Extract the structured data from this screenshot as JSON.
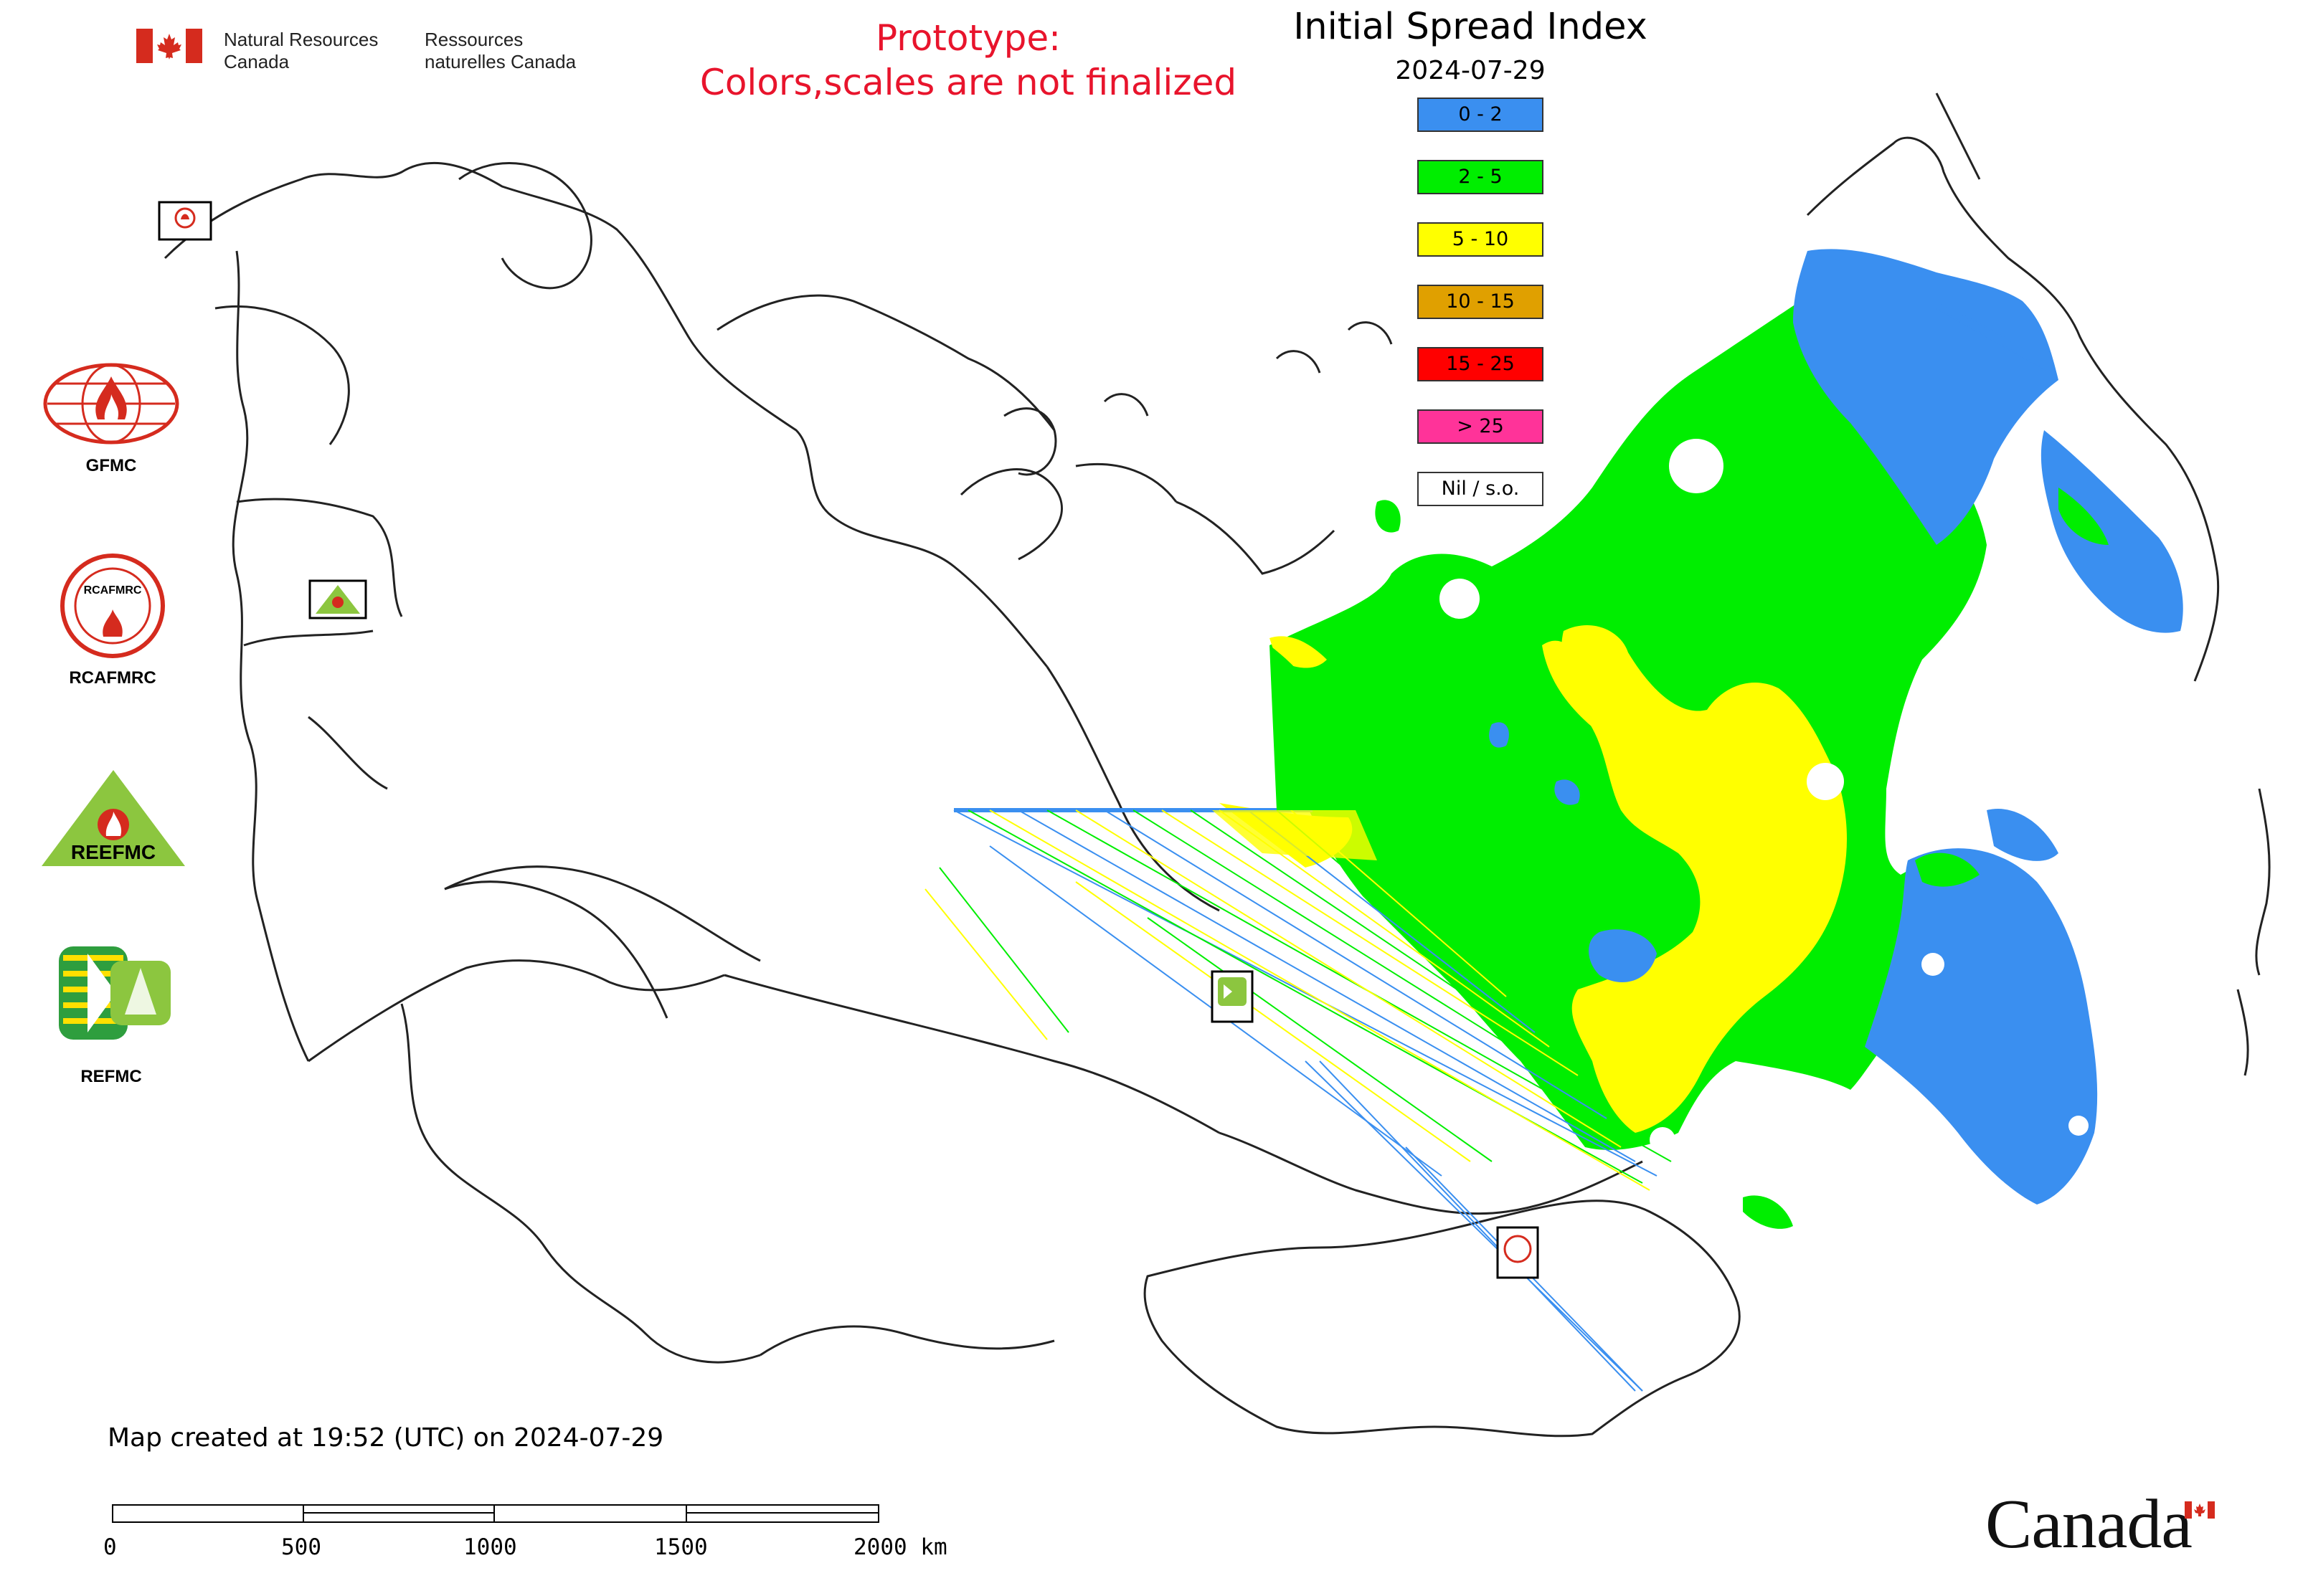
{
  "header": {
    "department_en": "Natural Resources Canada",
    "department_fr": "Ressources naturelles Canada",
    "prototype_line1": "Prototype:",
    "prototype_line2": "Colors,scales are not finalized",
    "title": "Initial Spread Index",
    "date": "2024-07-29"
  },
  "legend": {
    "items": [
      {
        "label": "0 - 2",
        "color": "#3a8ff0"
      },
      {
        "label": "2 - 5",
        "color": "#00ee00"
      },
      {
        "label": "5 - 10",
        "color": "#ffff00"
      },
      {
        "label": "10 - 15",
        "color": "#e0a000"
      },
      {
        "label": "15 - 25",
        "color": "#ff0000"
      },
      {
        "label": "> 25",
        "color": "#ff3399"
      },
      {
        "label": "Nil / s.o.",
        "color": "#ffffff"
      }
    ]
  },
  "logos": [
    {
      "name": "GFMC",
      "caption": "GFMC"
    },
    {
      "name": "RCAFMRC",
      "caption": "RCAFMRC"
    },
    {
      "name": "REEFMC",
      "caption": "REEFMC"
    },
    {
      "name": "REFMC",
      "caption": "REFMC"
    }
  ],
  "map_markers": [
    "GFMC",
    "REEFMC",
    "REFMC",
    "RCAFMRC"
  ],
  "footer": {
    "created": "Map created at 19:52 (UTC) on 2024-07-29"
  },
  "scale_bar": {
    "labels": [
      "0",
      "500",
      "1000",
      "1500",
      "2000 km"
    ]
  },
  "wordmark": "Canada",
  "colors": {
    "accent_red": "#e8142c",
    "flag_red": "#d52b1e"
  }
}
